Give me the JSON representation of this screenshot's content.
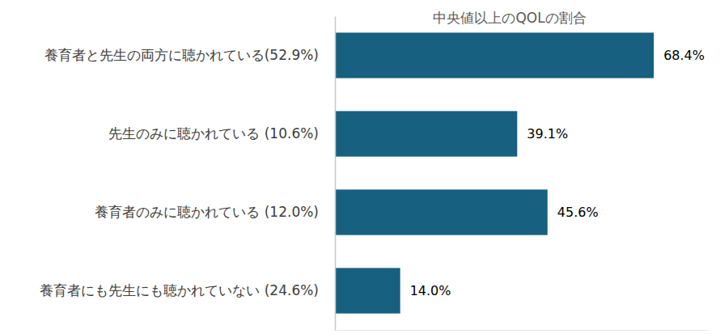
{
  "chart_data": {
    "type": "bar",
    "orientation": "horizontal",
    "title": "中央値以上のQOLの割合",
    "categories": [
      "養育者と先生の両方に聴かれている(52.9%)",
      "先生のみに聴かれている (10.6%)",
      "養育者のみに聴かれている (12.0%)",
      "養育者にも先生にも聴かれていない (24.6%)"
    ],
    "values": [
      68.4,
      39.1,
      45.6,
      14.0
    ],
    "value_labels": [
      "68.4%",
      "39.1%",
      "45.6%",
      "14.0%"
    ],
    "color": "#17607f",
    "xlim": [
      0,
      80
    ],
    "data_labels": true,
    "tick_labels": "y",
    "grid": false
  }
}
